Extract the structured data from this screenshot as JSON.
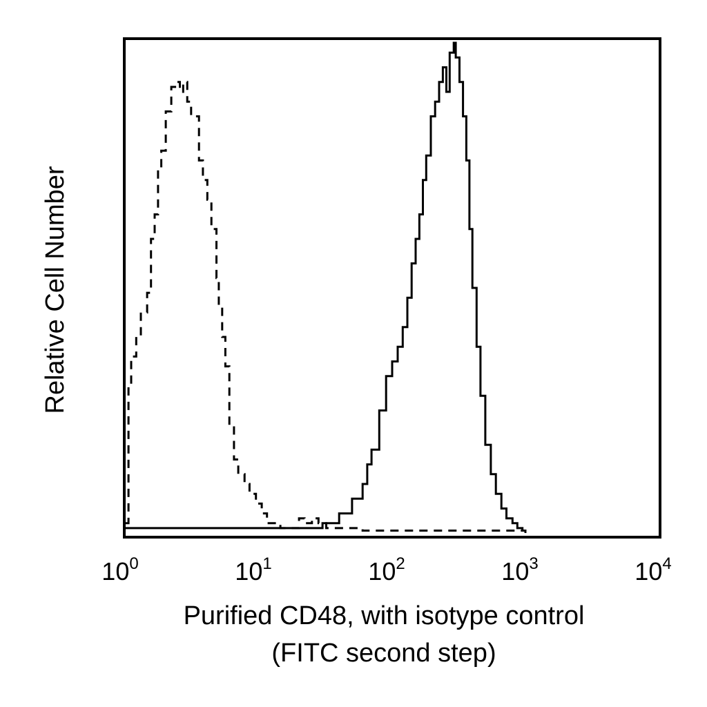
{
  "chart_data": {
    "type": "line",
    "title": "",
    "xlabel_lines": [
      "Purified CD48, with isotype control",
      "(FITC second step)"
    ],
    "ylabel": "Relative Cell Number",
    "x_scale": "log",
    "xlim": [
      1,
      10000
    ],
    "ylim": [
      0,
      100
    ],
    "x_ticks": [
      {
        "value": 1,
        "base": "10",
        "exp": "0"
      },
      {
        "value": 10,
        "base": "10",
        "exp": "1"
      },
      {
        "value": 100,
        "base": "10",
        "exp": "2"
      },
      {
        "value": 1000,
        "base": "10",
        "exp": "3"
      },
      {
        "value": 10000,
        "base": "10",
        "exp": "4"
      }
    ],
    "grid": false,
    "legend": "none",
    "series": [
      {
        "style": "dashed",
        "color": "#000000",
        "x": [
          1.0,
          1.05,
          1.1,
          1.2,
          1.3,
          1.45,
          1.55,
          1.65,
          1.75,
          1.85,
          2.0,
          2.2,
          2.4,
          2.55,
          2.7,
          2.9,
          3.1,
          3.3,
          3.55,
          3.8,
          4.1,
          4.4,
          4.8,
          5.0,
          5.3,
          5.6,
          6.0,
          6.5,
          7.0,
          7.8,
          8.5,
          9.5,
          10.5,
          11.5,
          13.0,
          14.5,
          16.0,
          18.0,
          20.0,
          22.0,
          25.0,
          28.0,
          32.0,
          40.0,
          60.0,
          100.0,
          200.0,
          400.0,
          700.0,
          1000.0
        ],
        "y": [
          2,
          30,
          36,
          40,
          45,
          49,
          60,
          65,
          74,
          78,
          86,
          91,
          92,
          90,
          92,
          88,
          85,
          85,
          76,
          72,
          68,
          62,
          52,
          46,
          40,
          34,
          22,
          15,
          12,
          10,
          8,
          6,
          4,
          2,
          2,
          1,
          1,
          1,
          3,
          2,
          3,
          2,
          1,
          1,
          0.5,
          0.5,
          0.5,
          0.5,
          0.5,
          0
        ]
      },
      {
        "style": "solid",
        "color": "#000000",
        "x": [
          1.0,
          2.0,
          5.0,
          10.0,
          20.0,
          30.0,
          40.0,
          50.0,
          60.0,
          65.0,
          70.0,
          80.0,
          90.0,
          100.0,
          110.0,
          120.0,
          130.0,
          140.0,
          150.0,
          160.0,
          170.0,
          180.0,
          195.0,
          210.0,
          225.0,
          240.0,
          255.0,
          270.0,
          290.0,
          300.0,
          320.0,
          340.0,
          360.0,
          380.0,
          400.0,
          430.0,
          460.0,
          500.0,
          550.0,
          600.0,
          660.0,
          720.0,
          800.0,
          870.0,
          950.0,
          1000.0
        ],
        "y": [
          1,
          1,
          1,
          1,
          1,
          2,
          4,
          7,
          10,
          14,
          17,
          25,
          32,
          35,
          38,
          42,
          48,
          55,
          60,
          65,
          72,
          77,
          85,
          88,
          92,
          95,
          90,
          98,
          100,
          97,
          92,
          85,
          76,
          62,
          50,
          38,
          28,
          18,
          12,
          8,
          5,
          3,
          2,
          1,
          0.5,
          0
        ]
      }
    ]
  }
}
